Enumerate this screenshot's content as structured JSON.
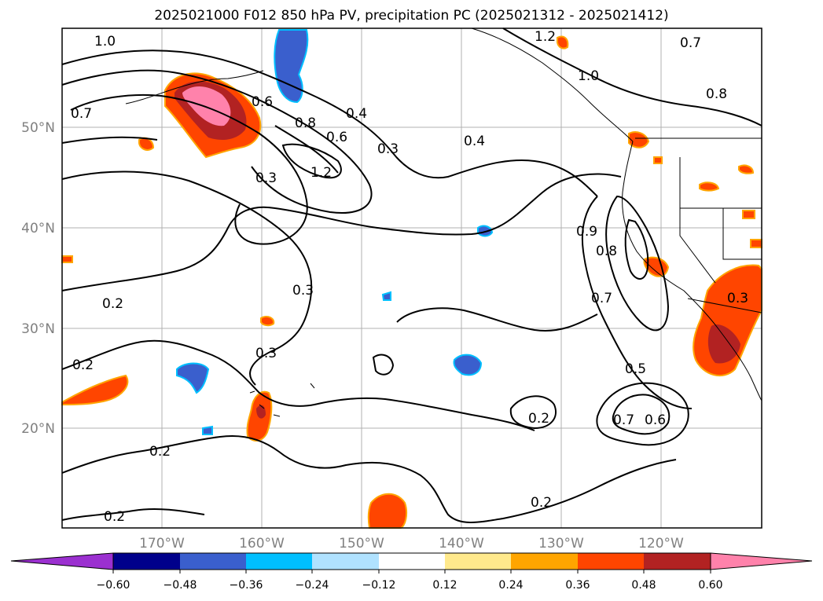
{
  "title": "2025021000 F012 850 hPa PV, precipitation PC (2025021312 - 2025021412)",
  "map": {
    "lat_labels": [
      "50°N",
      "40°N",
      "30°N",
      "20°N"
    ],
    "lon_labels": [
      "170°W",
      "160°W",
      "150°W",
      "140°W",
      "130°W",
      "120°W"
    ],
    "extent": {
      "lon_min": -180,
      "lon_max": -110,
      "lat_min": 10,
      "lat_max": 60
    },
    "contour_labels": [
      "1.0",
      "1.2",
      "0.7",
      "0.7",
      "0.8",
      "1.0",
      "0.4",
      "0.3",
      "0.8",
      "0.6",
      "1.2",
      "0.3",
      "0.4",
      "0.6",
      "0.8",
      "0.7",
      "0.3",
      "0.2",
      "0.3",
      "0.3",
      "0.2",
      "0.2",
      "0.5",
      "0.7",
      "0.6",
      "0.2",
      "0.2",
      "0.2",
      "0.9"
    ]
  },
  "colorbar": {
    "tick_labels": [
      "−0.60",
      "−0.48",
      "−0.36",
      "−0.24",
      "−0.12",
      "0.12",
      "0.24",
      "0.36",
      "0.48",
      "0.60"
    ],
    "colors": [
      "#9b30d0",
      "#00008b",
      "#3a5fcd",
      "#00bfff",
      "#b0e2ff",
      "#ffffff",
      "#ffe98c",
      "#ffa500",
      "#ff4500",
      "#b22222",
      "#ff82ab"
    ]
  }
}
